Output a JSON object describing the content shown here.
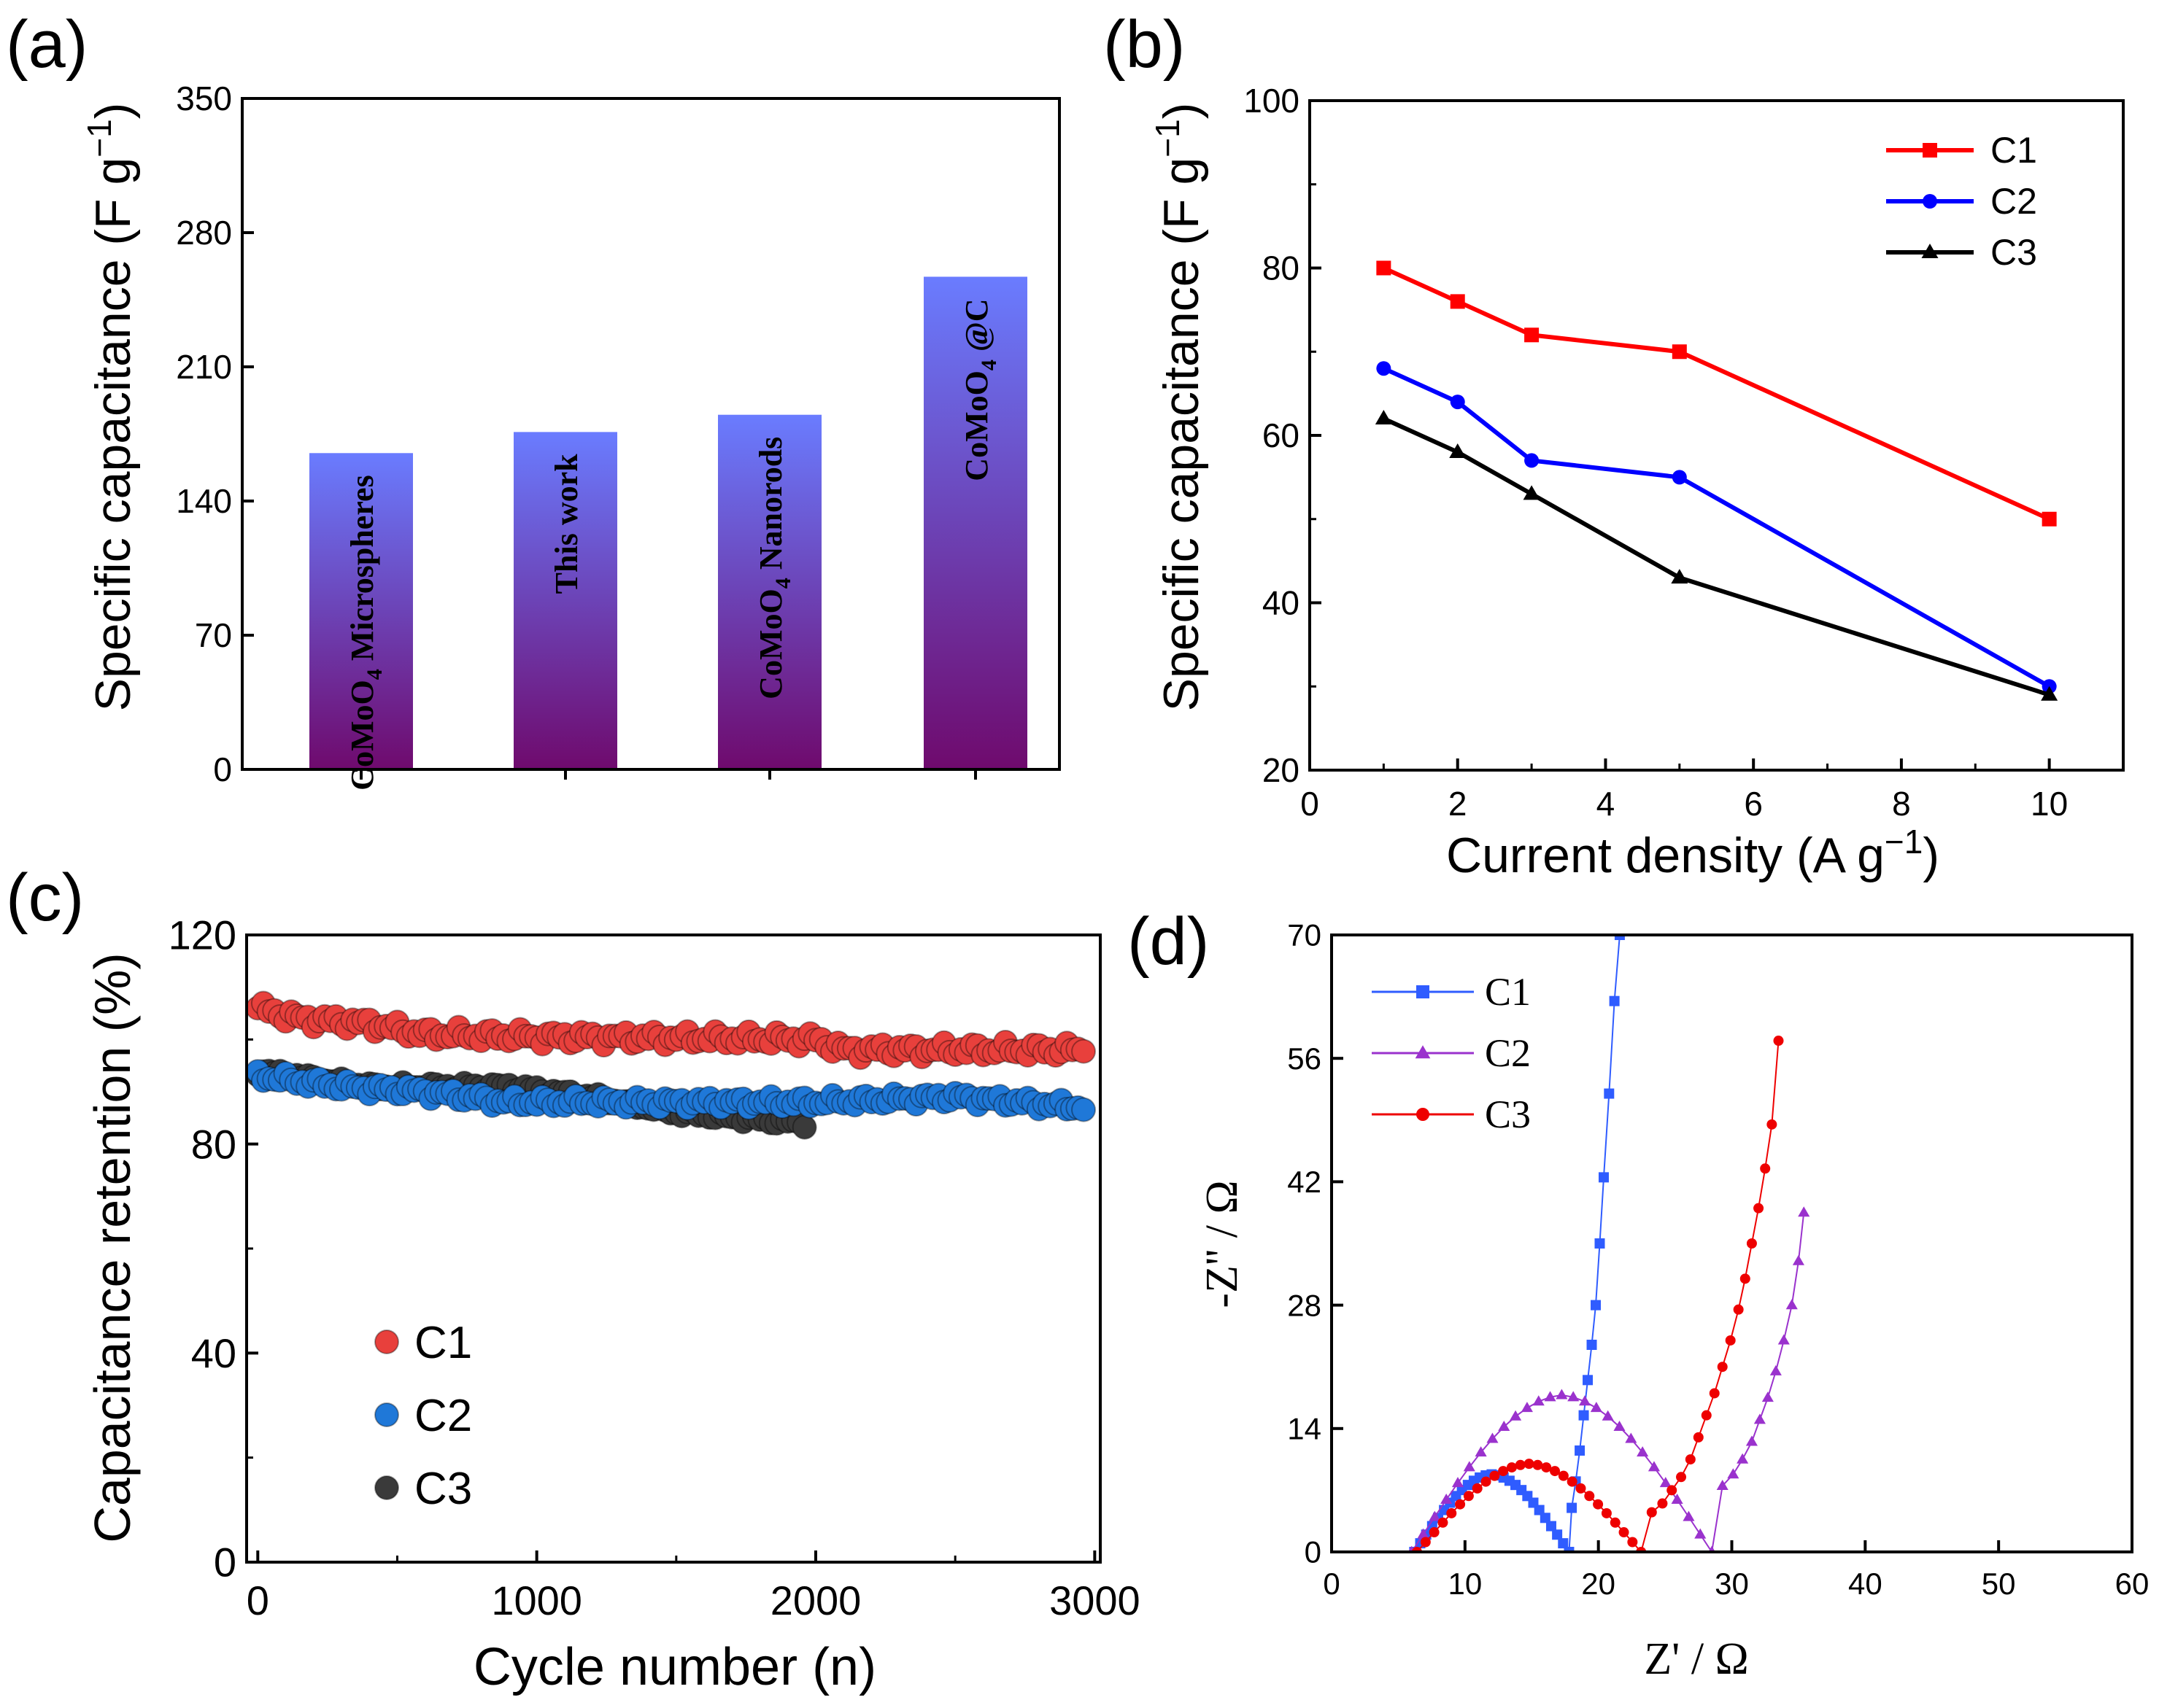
{
  "colors": {
    "bar_top": "#6a7cff",
    "bar_bottom": "#6f0a6d",
    "red": "#ff0000",
    "blue": "#0000ff",
    "black": "#000000",
    "c_red": "#e8403c",
    "c_blue": "#1f78d8",
    "c_gray": "#3a3a3a",
    "d_blue": "#2f5cff",
    "d_purple": "#9a32cd",
    "d_red": "#ee0000"
  },
  "chart_data": [
    {
      "panel_label": "(a)",
      "type": "bar",
      "categories": [
        "CoMoO4 Microspheres",
        "This work",
        "CoMoO4 Nanorods",
        "CoMoO4 @C"
      ],
      "bar_labels": [
        {
          "main": "CoMoO",
          "sub": "4",
          "rest": " Microspheres"
        },
        {
          "main": "This work",
          "sub": "",
          "rest": ""
        },
        {
          "main": "CoMoO",
          "sub": "4",
          "rest": " Nanorods"
        },
        {
          "main": "CoMoO",
          "sub": "4",
          "rest": " @C"
        }
      ],
      "values": [
        165,
        176,
        185,
        257
      ],
      "ylabel": "Specific capacitance (F g",
      "ylabel_sup": "−1",
      "ylabel_close": ")",
      "ylim": [
        0,
        350
      ],
      "yticks": [
        0,
        70,
        140,
        210,
        280,
        350
      ],
      "ytick_labels": [
        "0",
        "70",
        "140",
        "210",
        "280",
        "350"
      ]
    },
    {
      "panel_label": "(b)",
      "type": "line",
      "xlabel": "Current density (A g",
      "xlabel_sup": "−1",
      "xlabel_close": ")",
      "ylabel": "Specific capacitance (F g",
      "ylabel_sup": "−1",
      "ylabel_close": ")",
      "xlim": [
        0,
        11
      ],
      "ylim": [
        20,
        100
      ],
      "xticks": [
        0,
        2,
        4,
        6,
        8,
        10
      ],
      "xtick_labels": [
        "0",
        "2",
        "4",
        "6",
        "8",
        "10"
      ],
      "yticks": [
        20,
        40,
        60,
        80,
        100
      ],
      "ytick_labels": [
        "20",
        "40",
        "60",
        "80",
        "100"
      ],
      "legend_position": "top-right",
      "x": [
        1,
        2,
        3,
        5,
        10
      ],
      "series": [
        {
          "name": "C1",
          "color_key": "red",
          "marker": "square",
          "values": [
            80,
            76,
            72,
            70,
            50
          ]
        },
        {
          "name": "C2",
          "color_key": "blue",
          "marker": "circle",
          "values": [
            68,
            64,
            57,
            55,
            30
          ]
        },
        {
          "name": "C3",
          "color_key": "black",
          "marker": "triangle",
          "values": [
            62,
            58,
            53,
            43,
            29
          ]
        }
      ]
    },
    {
      "panel_label": "(c)",
      "type": "scatter",
      "xlabel": "Cycle number (n)",
      "ylabel": "Capacitance retention (%)",
      "xlim": [
        -40,
        3020
      ],
      "ylim": [
        0,
        120
      ],
      "xticks": [
        0,
        1000,
        2000,
        3000
      ],
      "xtick_labels": [
        "0",
        "1000",
        "2000",
        "3000"
      ],
      "yticks": [
        0,
        40,
        80,
        120
      ],
      "ytick_labels": [
        "0",
        "40",
        "80",
        "120"
      ],
      "legend_position": "bottom-left",
      "series": [
        {
          "name": "C1",
          "color_key": "c_red",
          "x_start": 0,
          "x_end": 2960,
          "step": 20,
          "anchors": [
            [
              0,
              106
            ],
            [
              150,
              104
            ],
            [
              400,
              103
            ],
            [
              600,
              101
            ],
            [
              1000,
              100.5
            ],
            [
              2000,
              100
            ],
            [
              2100,
              98
            ],
            [
              3000,
              98
            ]
          ],
          "jitter": 1.5
        },
        {
          "name": "C2",
          "color_key": "c_blue",
          "x_start": 0,
          "x_end": 2960,
          "step": 20,
          "anchors": [
            [
              0,
              93
            ],
            [
              300,
              91
            ],
            [
              600,
              90
            ],
            [
              900,
              88
            ],
            [
              1500,
              88
            ],
            [
              2000,
              88
            ],
            [
              2500,
              89
            ],
            [
              2960,
              87
            ]
          ],
          "jitter": 1.2
        },
        {
          "name": "C3",
          "color_key": "c_gray",
          "x_start": 0,
          "x_end": 1960,
          "step": 20,
          "anchors": [
            [
              0,
              94
            ],
            [
              400,
              91
            ],
            [
              900,
              91
            ],
            [
              1200,
              89
            ],
            [
              1500,
              86
            ],
            [
              1960,
              84
            ]
          ],
          "jitter": 0.8
        }
      ]
    },
    {
      "panel_label": "(d)",
      "type": "scatter",
      "xlabel": "Z' / Ω",
      "ylabel": "-Z'' / Ω",
      "xlim": [
        0,
        60
      ],
      "ylim": [
        0,
        70
      ],
      "xticks": [
        0,
        10,
        20,
        30,
        40,
        50,
        60
      ],
      "xtick_labels": [
        "0",
        "10",
        "20",
        "30",
        "40",
        "50",
        "60"
      ],
      "yticks": [
        0,
        14,
        28,
        42,
        56,
        70
      ],
      "ytick_labels": [
        "0",
        "14",
        "28",
        "42",
        "56",
        "70"
      ],
      "legend_position": "top-left",
      "series": [
        {
          "name": "C1",
          "color_key": "d_blue",
          "marker": "square",
          "semicircle": {
            "start": 6.2,
            "end": 17.8,
            "peak_x": 12.5,
            "peak_y": 8.8
          },
          "tail": {
            "x": [
              17.8,
              18.0,
              18.3,
              18.6,
              18.9,
              19.2,
              19.5,
              19.8,
              20.1,
              20.4,
              20.8,
              21.2,
              21.6
            ],
            "y": [
              2.5,
              5,
              8,
              11.5,
              15.5,
              19.5,
              23.5,
              28,
              35,
              42.5,
              52,
              62.5,
              70
            ]
          }
        },
        {
          "name": "C2",
          "color_key": "d_purple",
          "marker": "triangle",
          "semicircle": {
            "start": 6.0,
            "end": 28.5,
            "peak_x": 17.5,
            "peak_y": 17.8
          },
          "tail": {
            "x": [
              28.5,
              29.3,
              30.1,
              30.8,
              31.5,
              32.1,
              32.7,
              33.3,
              33.9,
              34.5,
              35.0,
              35.4
            ],
            "y": [
              7,
              7.5,
              8.8,
              10.5,
              12.5,
              15,
              17.5,
              20.5,
              24,
              28,
              33,
              38.5
            ]
          }
        },
        {
          "name": "C3",
          "color_key": "d_red",
          "marker": "circle",
          "semicircle": {
            "start": 6.4,
            "end": 23.2,
            "peak_x": 15,
            "peak_y": 10
          },
          "tail": {
            "x": [
              23.2,
              24.0,
              24.8,
              25.5,
              26.2,
              26.9,
              27.5,
              28.1,
              28.7,
              29.3,
              29.9,
              30.5,
              31.0,
              31.5,
              32.0,
              32.5,
              33.0,
              33.5
            ],
            "y": [
              4,
              4.5,
              5.5,
              7,
              8.5,
              10.5,
              13,
              15.5,
              18,
              21,
              24,
              27.5,
              31,
              35,
              39,
              43.5,
              48.5,
              58
            ]
          }
        }
      ]
    }
  ]
}
